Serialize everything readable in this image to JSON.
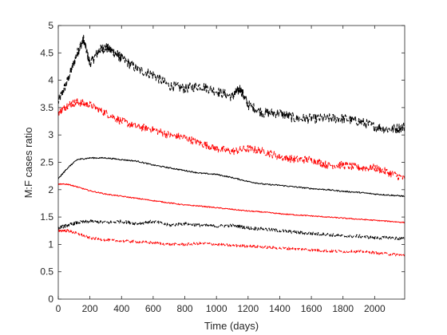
{
  "chart_data": {
    "type": "line",
    "xlabel": "Time (days)",
    "ylabel": "M:F cases ratio",
    "xlim": [
      0,
      2190
    ],
    "ylim": [
      0,
      5
    ],
    "xticks": [
      0,
      200,
      400,
      600,
      800,
      1000,
      1200,
      1400,
      1600,
      1800,
      2000
    ],
    "yticks": [
      0,
      0.5,
      1,
      1.5,
      2,
      2.5,
      3,
      3.5,
      4,
      4.5,
      5
    ],
    "grid": false,
    "legend": "none",
    "series": [
      {
        "color": "#000000",
        "style": "dashed",
        "x": [
          0,
          60,
          120,
          160,
          200,
          260,
          300,
          360,
          400,
          500,
          600,
          700,
          800,
          900,
          1000,
          1100,
          1150,
          1200,
          1300,
          1400,
          1500,
          1600,
          1700,
          1800,
          1900,
          2000,
          2100,
          2190
        ],
        "y": [
          3.6,
          4.0,
          4.5,
          4.75,
          4.3,
          4.55,
          4.6,
          4.5,
          4.4,
          4.2,
          4.1,
          3.9,
          3.85,
          3.9,
          3.8,
          3.7,
          3.85,
          3.55,
          3.4,
          3.4,
          3.3,
          3.3,
          3.3,
          3.3,
          3.25,
          3.15,
          3.1,
          3.15
        ]
      },
      {
        "color": "#ff0000",
        "style": "dashed",
        "x": [
          0,
          60,
          120,
          200,
          300,
          400,
          500,
          600,
          700,
          800,
          900,
          1000,
          1100,
          1200,
          1300,
          1400,
          1500,
          1600,
          1700,
          1800,
          1900,
          2000,
          2100,
          2190
        ],
        "y": [
          3.4,
          3.55,
          3.6,
          3.55,
          3.4,
          3.25,
          3.15,
          3.1,
          3.0,
          2.95,
          2.85,
          2.75,
          2.7,
          2.75,
          2.7,
          2.6,
          2.55,
          2.55,
          2.45,
          2.45,
          2.4,
          2.4,
          2.3,
          2.2
        ]
      },
      {
        "color": "#000000",
        "style": "solid",
        "x": [
          0,
          60,
          120,
          200,
          300,
          400,
          500,
          600,
          700,
          800,
          900,
          1000,
          1100,
          1200,
          1300,
          1400,
          1500,
          1600,
          1700,
          1800,
          1900,
          2000,
          2100,
          2190
        ],
        "y": [
          2.2,
          2.4,
          2.55,
          2.58,
          2.58,
          2.55,
          2.52,
          2.45,
          2.4,
          2.35,
          2.3,
          2.28,
          2.22,
          2.15,
          2.1,
          2.08,
          2.05,
          2.02,
          2.0,
          1.97,
          1.95,
          1.92,
          1.9,
          1.88
        ]
      },
      {
        "color": "#ff0000",
        "style": "solid",
        "x": [
          0,
          60,
          120,
          200,
          300,
          400,
          500,
          600,
          700,
          800,
          900,
          1000,
          1100,
          1200,
          1300,
          1400,
          1500,
          1600,
          1700,
          1800,
          1900,
          2000,
          2100,
          2190
        ],
        "y": [
          2.1,
          2.1,
          2.05,
          1.98,
          1.92,
          1.88,
          1.84,
          1.8,
          1.76,
          1.72,
          1.7,
          1.67,
          1.64,
          1.61,
          1.59,
          1.56,
          1.54,
          1.52,
          1.5,
          1.48,
          1.46,
          1.44,
          1.42,
          1.4
        ]
      },
      {
        "color": "#000000",
        "style": "dashed",
        "x": [
          0,
          60,
          120,
          200,
          300,
          400,
          500,
          600,
          700,
          800,
          900,
          1000,
          1100,
          1200,
          1300,
          1400,
          1500,
          1600,
          1700,
          1800,
          1900,
          2000,
          2100,
          2190
        ],
        "y": [
          1.3,
          1.35,
          1.4,
          1.42,
          1.4,
          1.42,
          1.38,
          1.42,
          1.35,
          1.38,
          1.35,
          1.33,
          1.35,
          1.3,
          1.28,
          1.25,
          1.22,
          1.2,
          1.18,
          1.15,
          1.15,
          1.12,
          1.12,
          1.1
        ]
      },
      {
        "color": "#ff0000",
        "style": "dashed",
        "x": [
          0,
          60,
          120,
          200,
          300,
          400,
          500,
          600,
          700,
          800,
          900,
          1000,
          1100,
          1200,
          1300,
          1400,
          1500,
          1600,
          1700,
          1800,
          1900,
          2000,
          2100,
          2190
        ],
        "y": [
          1.25,
          1.25,
          1.2,
          1.12,
          1.08,
          1.06,
          1.05,
          1.03,
          1.0,
          1.0,
          1.02,
          1.0,
          0.98,
          0.97,
          0.95,
          0.93,
          0.92,
          0.9,
          0.88,
          0.87,
          0.87,
          0.85,
          0.82,
          0.8
        ]
      }
    ]
  }
}
